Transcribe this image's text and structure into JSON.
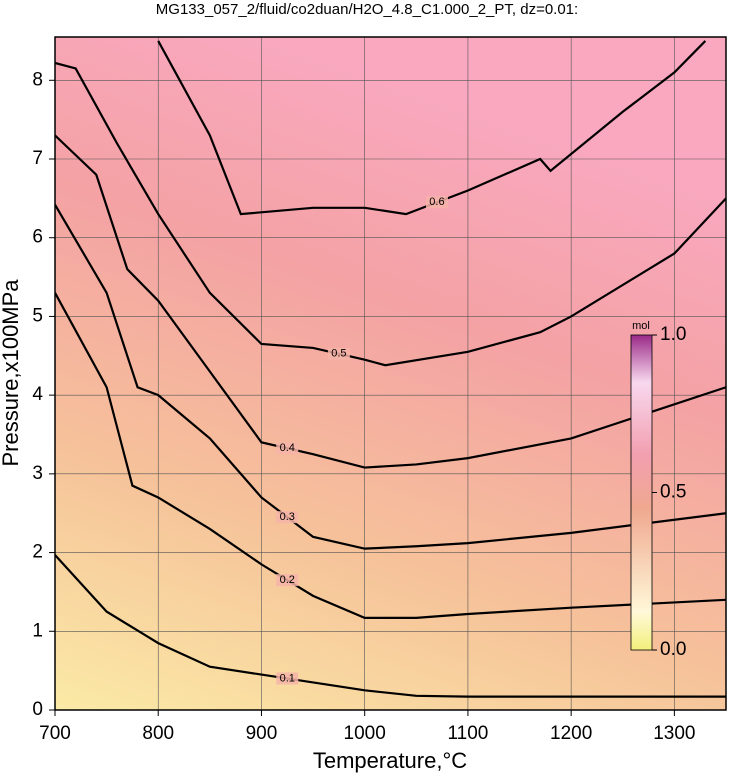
{
  "chart_data": {
    "type": "contour",
    "title": "MG133_057_2/fluid/co2duan/H2O_4.8_C1.000_2_PT, dz=0.01:",
    "x_label": "Temperature,°C",
    "y_label": "Pressure,x100MPa",
    "xlim": [
      700,
      1350
    ],
    "ylim": [
      0,
      8.55
    ],
    "xticks": [
      700,
      800,
      900,
      1000,
      1100,
      1200,
      1300
    ],
    "yticks": [
      0,
      1,
      2,
      3,
      4,
      5,
      6,
      7,
      8
    ],
    "grid": true,
    "line_color": "#000000",
    "contours": [
      {
        "level": 0.1,
        "x": [
          700,
          750,
          800,
          850,
          900,
          950,
          1000,
          1050,
          1100,
          1350
        ],
        "y": [
          1.97,
          1.25,
          0.85,
          0.55,
          0.45,
          0.35,
          0.25,
          0.18,
          0.17,
          0.17
        ]
      },
      {
        "level": 0.2,
        "x": [
          700,
          750,
          775,
          800,
          850,
          900,
          950,
          1000,
          1050,
          1100,
          1200,
          1350
        ],
        "y": [
          5.3,
          4.1,
          2.85,
          2.7,
          2.3,
          1.85,
          1.45,
          1.17,
          1.17,
          1.22,
          1.3,
          1.4
        ]
      },
      {
        "level": 0.3,
        "x": [
          700,
          750,
          780,
          800,
          850,
          900,
          950,
          1000,
          1050,
          1100,
          1200,
          1350
        ],
        "y": [
          6.42,
          5.3,
          4.1,
          4.0,
          3.45,
          2.7,
          2.2,
          2.05,
          2.08,
          2.12,
          2.25,
          2.5
        ]
      },
      {
        "level": 0.4,
        "x": [
          700,
          740,
          770,
          800,
          850,
          900,
          950,
          1000,
          1050,
          1100,
          1200,
          1350
        ],
        "y": [
          7.3,
          6.8,
          5.6,
          5.2,
          4.3,
          3.4,
          3.25,
          3.08,
          3.12,
          3.2,
          3.45,
          4.1
        ]
      },
      {
        "level": 0.5,
        "x": [
          700,
          720,
          760,
          800,
          850,
          900,
          950,
          1000,
          1020,
          1100,
          1170,
          1200,
          1300,
          1350
        ],
        "y": [
          8.22,
          8.15,
          7.2,
          6.3,
          5.3,
          4.65,
          4.6,
          4.45,
          4.38,
          4.55,
          4.8,
          5.0,
          5.8,
          6.5
        ]
      },
      {
        "level": 0.6,
        "x": [
          800,
          850,
          880,
          950,
          1000,
          1040,
          1100,
          1170,
          1180,
          1250,
          1300,
          1330
        ],
        "y": [
          8.5,
          7.3,
          6.3,
          6.38,
          6.38,
          6.3,
          6.6,
          7.0,
          6.85,
          7.6,
          8.1,
          8.5
        ]
      }
    ],
    "colorbar": {
      "label": "mol",
      "lim": [
        0,
        1
      ],
      "ticks": [
        {
          "value": 0,
          "label": "0.0"
        },
        {
          "value": 0.5,
          "label": "0.5"
        },
        {
          "value": 1,
          "label": "1.0"
        }
      ]
    }
  }
}
